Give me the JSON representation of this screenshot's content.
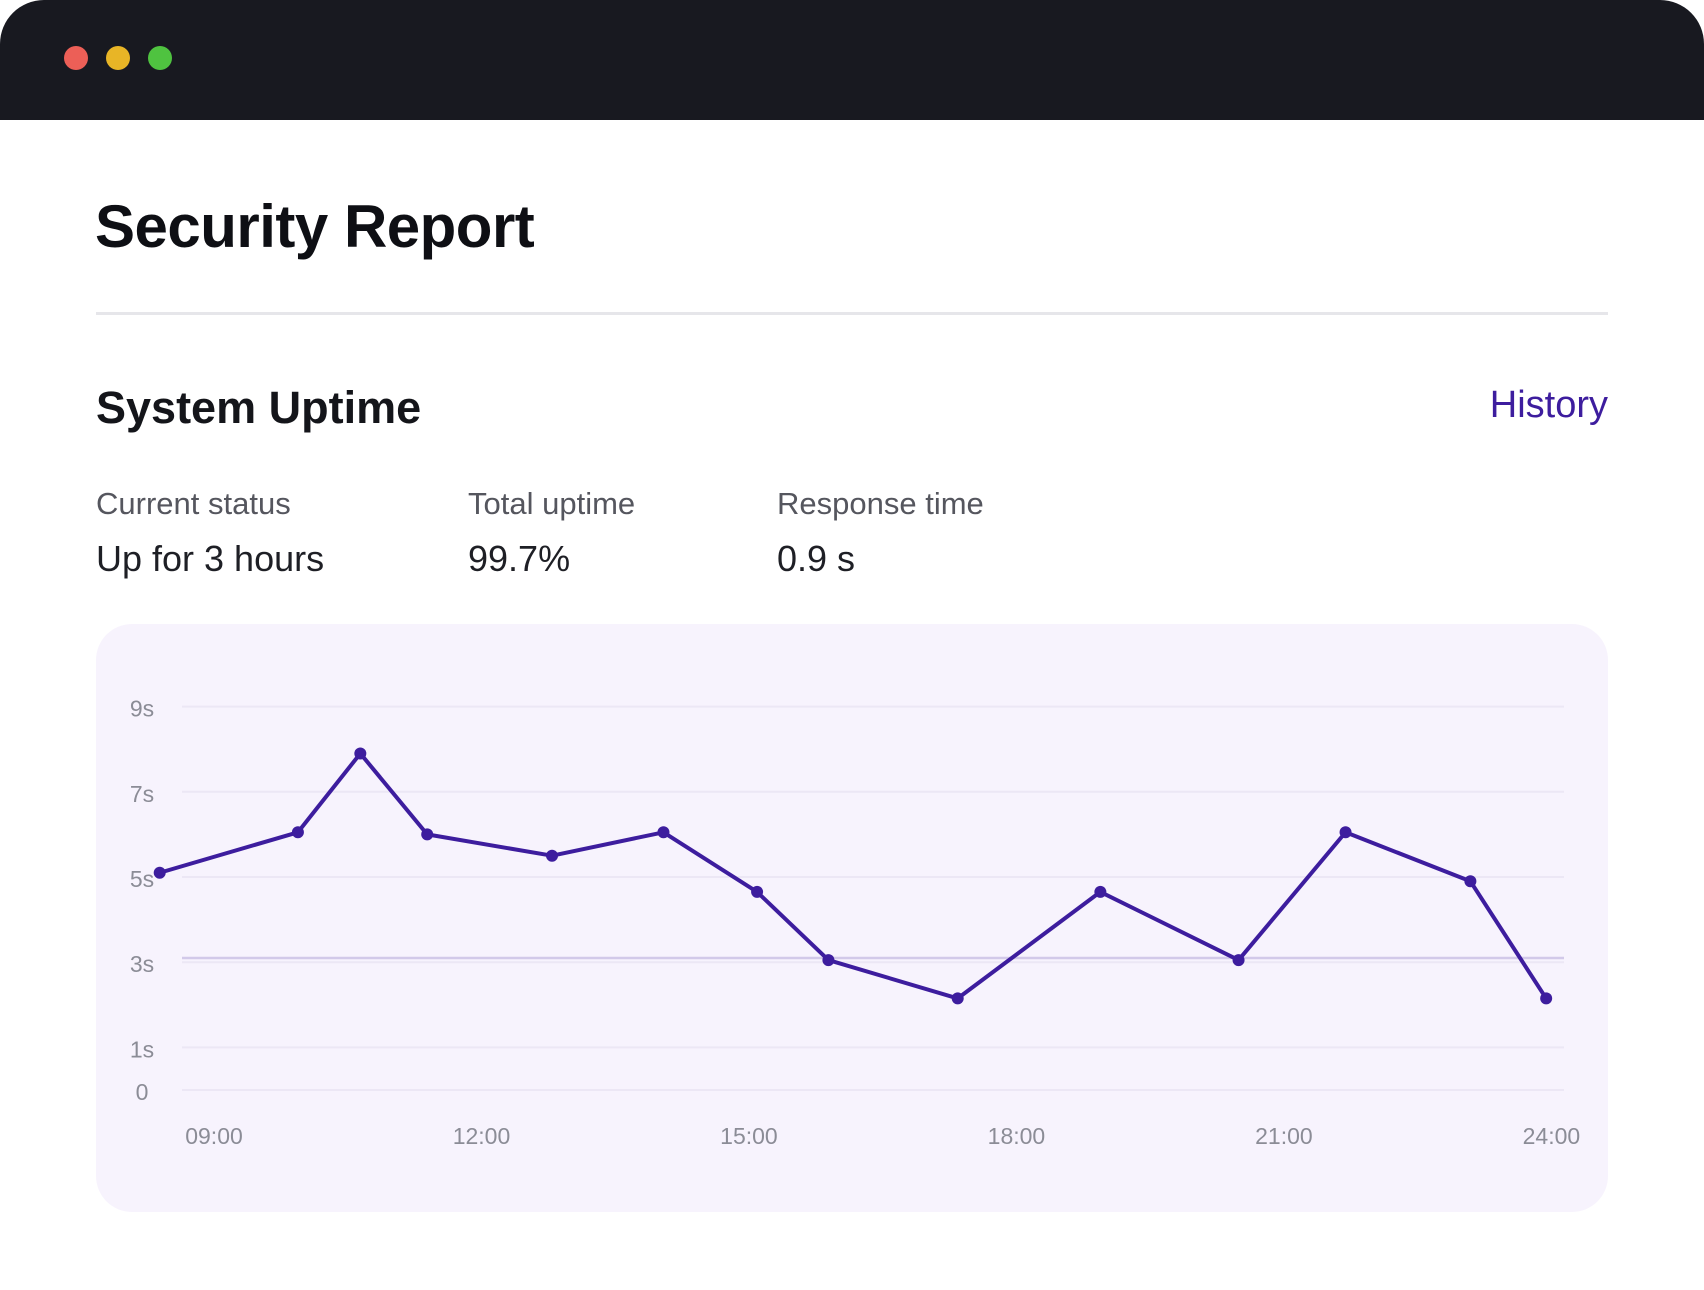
{
  "window": {
    "controls": [
      {
        "name": "close",
        "color": "#ec5f57"
      },
      {
        "name": "minimize",
        "color": "#e8b526"
      },
      {
        "name": "maximize",
        "color": "#4fc340"
      }
    ]
  },
  "page": {
    "title": "Security Report"
  },
  "section": {
    "title": "System Uptime",
    "history_label": "History",
    "accent_color": "#3d1d9e"
  },
  "stats": [
    {
      "label": "Current status",
      "value": "Up for 3 hours"
    },
    {
      "label": "Total uptime",
      "value": "99.7%"
    },
    {
      "label": "Response time",
      "value": "0.9 s"
    }
  ],
  "chart_data": {
    "type": "line",
    "title": "",
    "xlabel": "",
    "ylabel": "",
    "x_ticks": [
      "09:00",
      "12:00",
      "15:00",
      "18:00",
      "21:00",
      "24:00"
    ],
    "x_tick_hours": [
      9,
      12,
      15,
      18,
      21,
      24
    ],
    "xlim": [
      9,
      24.5
    ],
    "y_ticks": [
      {
        "value": 0,
        "label": "0"
      },
      {
        "value": 1,
        "label": "1s"
      },
      {
        "value": 3,
        "label": "3s"
      },
      {
        "value": 5,
        "label": "5s"
      },
      {
        "value": 7,
        "label": "7s"
      },
      {
        "value": 9,
        "label": "9s"
      }
    ],
    "ylim": [
      0,
      10
    ],
    "grid": true,
    "reference_line": 3.1,
    "line_color": "#3d1d9e",
    "series": [
      {
        "x": [
          8.75,
          10.3,
          11.0,
          11.75,
          13.15,
          14.4,
          15.45,
          16.25,
          17.7,
          19.3,
          20.85,
          22.05,
          23.45,
          24.3
        ],
        "y": [
          5.1,
          6.05,
          7.9,
          6.0,
          5.5,
          6.05,
          4.65,
          3.05,
          2.15,
          4.65,
          3.05,
          6.05,
          4.9,
          2.15
        ]
      }
    ]
  }
}
